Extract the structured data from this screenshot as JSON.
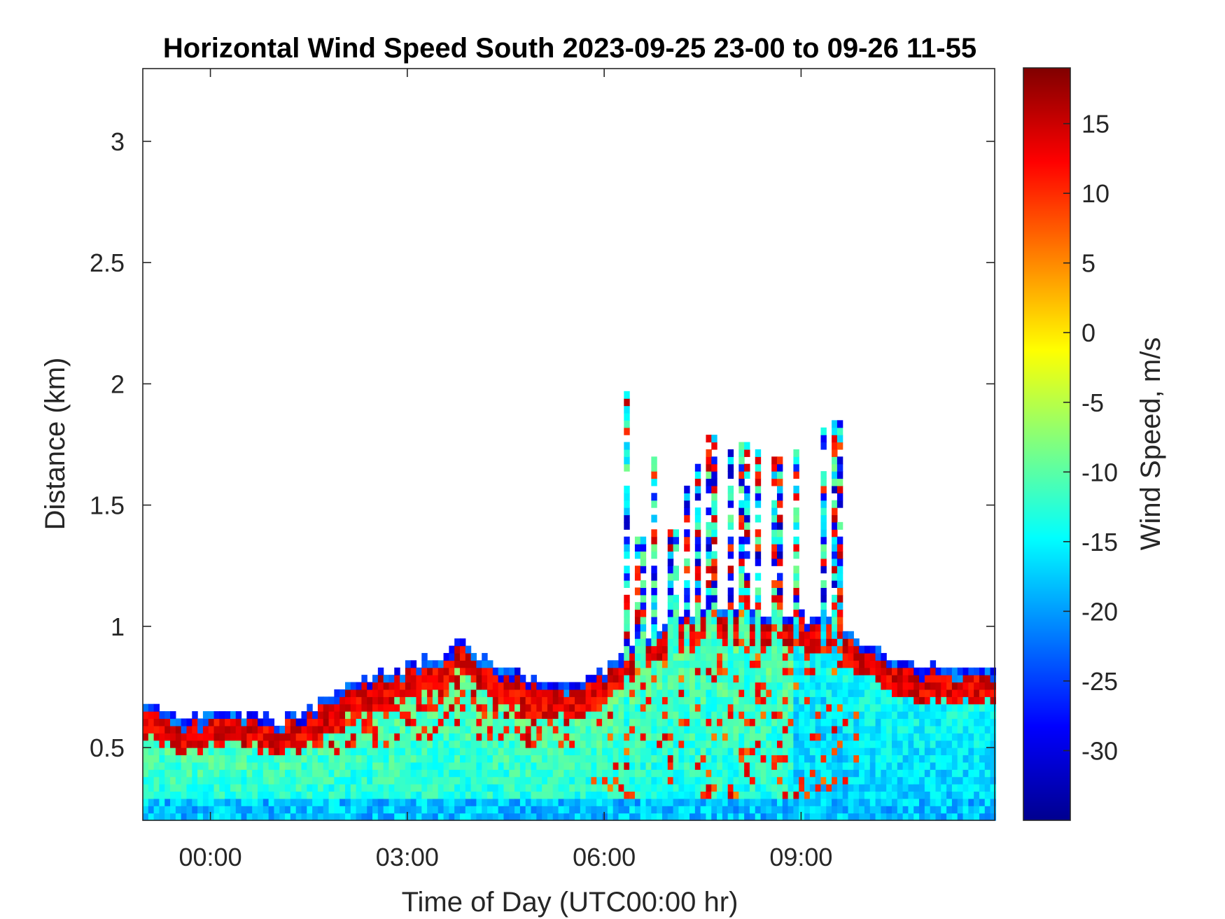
{
  "chart_data": {
    "type": "heatmap",
    "title": "Horizontal Wind Speed South 2023-09-25 23-00 to 09-26 11-55",
    "xlabel": "Time of Day (UTC00:00 hr)",
    "ylabel": "Distance (km)",
    "xlim_hours": [
      -1.03,
      11.95
    ],
    "ylim": [
      0.2,
      3.3
    ],
    "xticks": [
      {
        "value": 0,
        "label": "00:00"
      },
      {
        "value": 3,
        "label": "03:00"
      },
      {
        "value": 6,
        "label": "06:00"
      },
      {
        "value": 9,
        "label": "09:00"
      }
    ],
    "yticks": [
      {
        "value": 0.5,
        "label": "0.5"
      },
      {
        "value": 1,
        "label": "1"
      },
      {
        "value": 1.5,
        "label": "1.5"
      },
      {
        "value": 2,
        "label": "2"
      },
      {
        "value": 2.5,
        "label": "2.5"
      },
      {
        "value": 3,
        "label": "3"
      }
    ],
    "colorbar": {
      "label": "Wind Speed, m/s",
      "range": [
        -35,
        19
      ],
      "colormap": "jet",
      "ticks": [
        {
          "value": 15,
          "label": "15"
        },
        {
          "value": 10,
          "label": "10"
        },
        {
          "value": 5,
          "label": "5"
        },
        {
          "value": 0,
          "label": "0"
        },
        {
          "value": -5,
          "label": "-5"
        },
        {
          "value": -10,
          "label": "-10"
        },
        {
          "value": -15,
          "label": "-15"
        },
        {
          "value": -20,
          "label": "-20"
        },
        {
          "value": -25,
          "label": "-25"
        },
        {
          "value": -30,
          "label": "-30"
        }
      ]
    },
    "grid": false,
    "time_step_hours": 0.0833,
    "range_step_km": 0.03,
    "boundary_layer_top_km": {
      "times": [
        -1.0,
        -0.5,
        0.0,
        0.5,
        1.0,
        1.5,
        2.0,
        2.5,
        3.0,
        3.5,
        3.75,
        4.0,
        4.5,
        5.0,
        5.5,
        6.0,
        6.5,
        7.0,
        7.5,
        8.0,
        8.5,
        9.0,
        9.5,
        10.0,
        10.5,
        11.0,
        11.5,
        11.95
      ],
      "values": [
        0.66,
        0.6,
        0.62,
        0.63,
        0.6,
        0.64,
        0.74,
        0.79,
        0.82,
        0.87,
        0.96,
        0.88,
        0.8,
        0.76,
        0.76,
        0.82,
        0.94,
        1.02,
        1.06,
        1.06,
        1.05,
        1.03,
        1.0,
        0.9,
        0.84,
        0.82,
        0.82,
        0.82
      ]
    },
    "jet_speed_m_s": [
      15,
      12
    ],
    "near_surface_speed_m_s": [
      -22,
      -12
    ],
    "mid_layer_speed_m_s": [
      -6,
      -14
    ],
    "plumes": [
      {
        "time": 6.3,
        "top_km": 1.97
      },
      {
        "time": 6.5,
        "top_km": 1.35
      },
      {
        "time": 6.7,
        "top_km": 1.68
      },
      {
        "time": 7.0,
        "top_km": 1.38
      },
      {
        "time": 7.2,
        "top_km": 1.6
      },
      {
        "time": 7.4,
        "top_km": 1.65
      },
      {
        "time": 7.6,
        "top_km": 1.78
      },
      {
        "time": 7.9,
        "top_km": 1.73
      },
      {
        "time": 8.1,
        "top_km": 1.76
      },
      {
        "time": 8.3,
        "top_km": 1.73
      },
      {
        "time": 8.6,
        "top_km": 1.68
      },
      {
        "time": 8.9,
        "top_km": 1.76
      },
      {
        "time": 9.3,
        "top_km": 1.8
      },
      {
        "time": 9.5,
        "top_km": 1.84
      }
    ]
  }
}
